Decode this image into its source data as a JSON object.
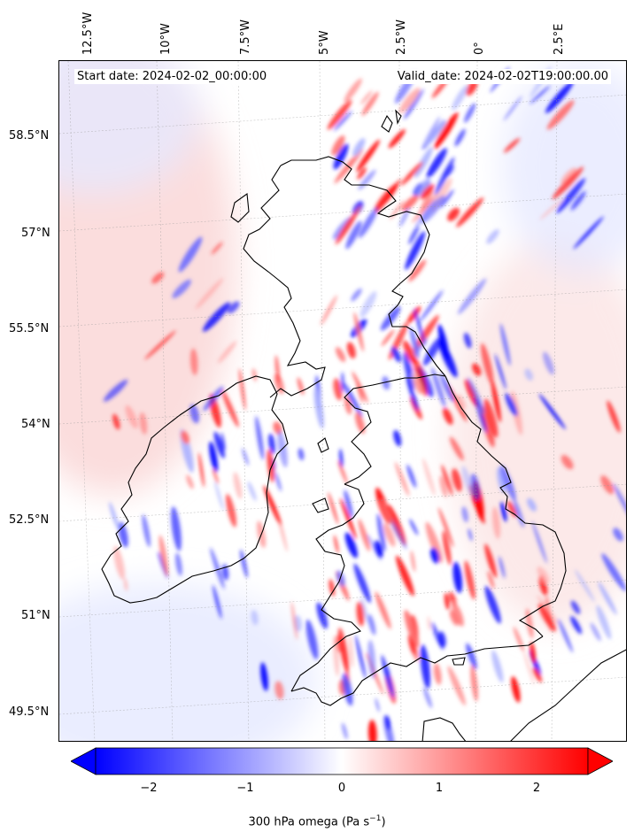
{
  "start_date": "Start date: 2024-02-02_00:00:00",
  "valid_date": "Valid_date: 2024-02-02T19:00:00.00",
  "lon_labels": [
    "12.5°W",
    "10°W",
    "7.5°W",
    "5°W",
    "2.5°W",
    "0°",
    "2.5°E"
  ],
  "lat_labels": [
    "58.5°N",
    "57°N",
    "55.5°N",
    "54°N",
    "52.5°N",
    "51°N",
    "49.5°N"
  ],
  "colorbar": {
    "ticks": [
      "−2",
      "−1",
      "0",
      "1",
      "2"
    ],
    "label": "300 hPa omega (Pa s",
    "label_sup": "−1",
    "label_end": ")",
    "min_color": "#0000ff",
    "mid_color": "#ffffff",
    "max_color": "#ff0000"
  }
}
